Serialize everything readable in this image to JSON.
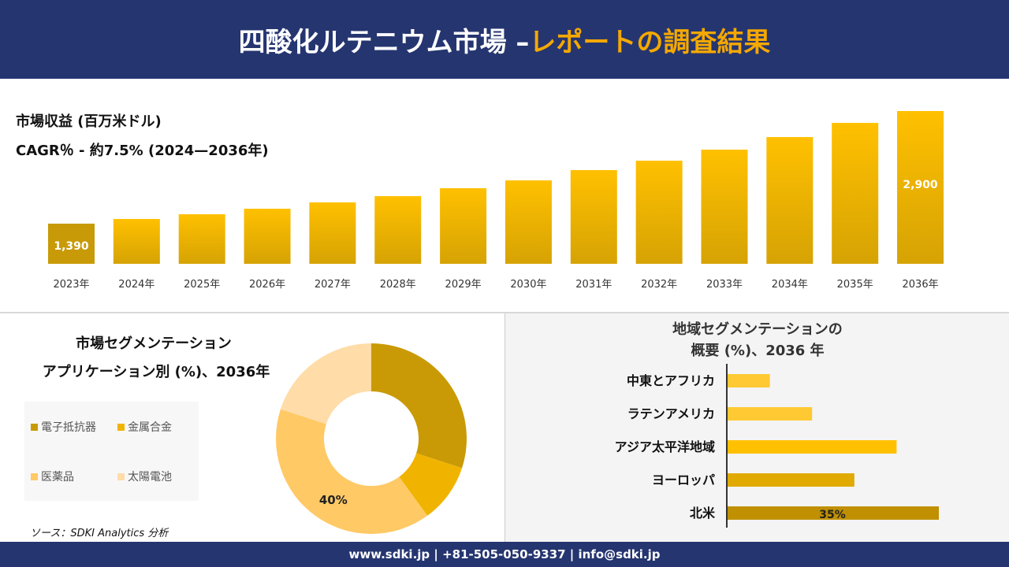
{
  "header": {
    "title_main": "四酸化ルテニウム市場 –",
    "title_accent": "レポートの調査結果"
  },
  "colors": {
    "navy": "#253570",
    "accent": "#f5a800",
    "bar_light": "#ffc000",
    "bar_dark": "#c99a06"
  },
  "revenue": {
    "title": "市場収益 (百万米ドル)",
    "cagr": "CAGR％ - 約7.5% (2024—2036年)"
  },
  "chart_data": [
    {
      "type": "bar",
      "title": "市場収益 (百万米ドル)",
      "categories": [
        "2023年",
        "2024年",
        "2025年",
        "2026年",
        "2027年",
        "2028年",
        "2029年",
        "2030年",
        "2031年",
        "2032年",
        "2033年",
        "2034年",
        "2035年",
        "2036年"
      ],
      "values": [
        1390,
        1453,
        1516,
        1590,
        1675,
        1759,
        1865,
        1970,
        2108,
        2234,
        2382,
        2551,
        2741,
        2900
      ],
      "data_labels": {
        "0": "1,390",
        "13": "2,900"
      },
      "grid": false
    },
    {
      "type": "pie",
      "title": "市場セグメンテーション アプリケーション別 (%)、2036年",
      "categories": [
        "電子抵抗器",
        "金属合金",
        "医薬品",
        "太陽電池"
      ],
      "values": [
        30,
        10,
        40,
        20
      ],
      "colors": [
        "#c99a06",
        "#f0b400",
        "#ffc966",
        "#ffdca8"
      ],
      "data_labels": {
        "2": "40%"
      },
      "donut": true,
      "legend": "left"
    },
    {
      "type": "bar",
      "orientation": "horizontal",
      "title": "地域セグメンテーションの概要 (%)、2036 年",
      "categories": [
        "中東とアフリカ",
        "ラテンアメリカ",
        "アジア太平洋地域",
        "ヨーロッパ",
        "北米"
      ],
      "values": [
        7,
        14,
        28,
        21,
        35
      ],
      "colors": [
        "#ffc933",
        "#ffc933",
        "#ffc000",
        "#e0aa00",
        "#c09000"
      ],
      "data_labels": {
        "4": "35%"
      }
    }
  ],
  "segment": {
    "title_line1": "市場セグメンテーション",
    "title_line2": "アプリケーション別 (%)、2036年"
  },
  "region": {
    "title_line1": "地域セグメンテーションの",
    "title_line2": "概要 (%)、2036 年"
  },
  "source": "ソース：SDKI Analytics 分析",
  "footer": {
    "contact": "www.sdki.jp | +81-505-050-9337 | info@sdki.jp"
  }
}
